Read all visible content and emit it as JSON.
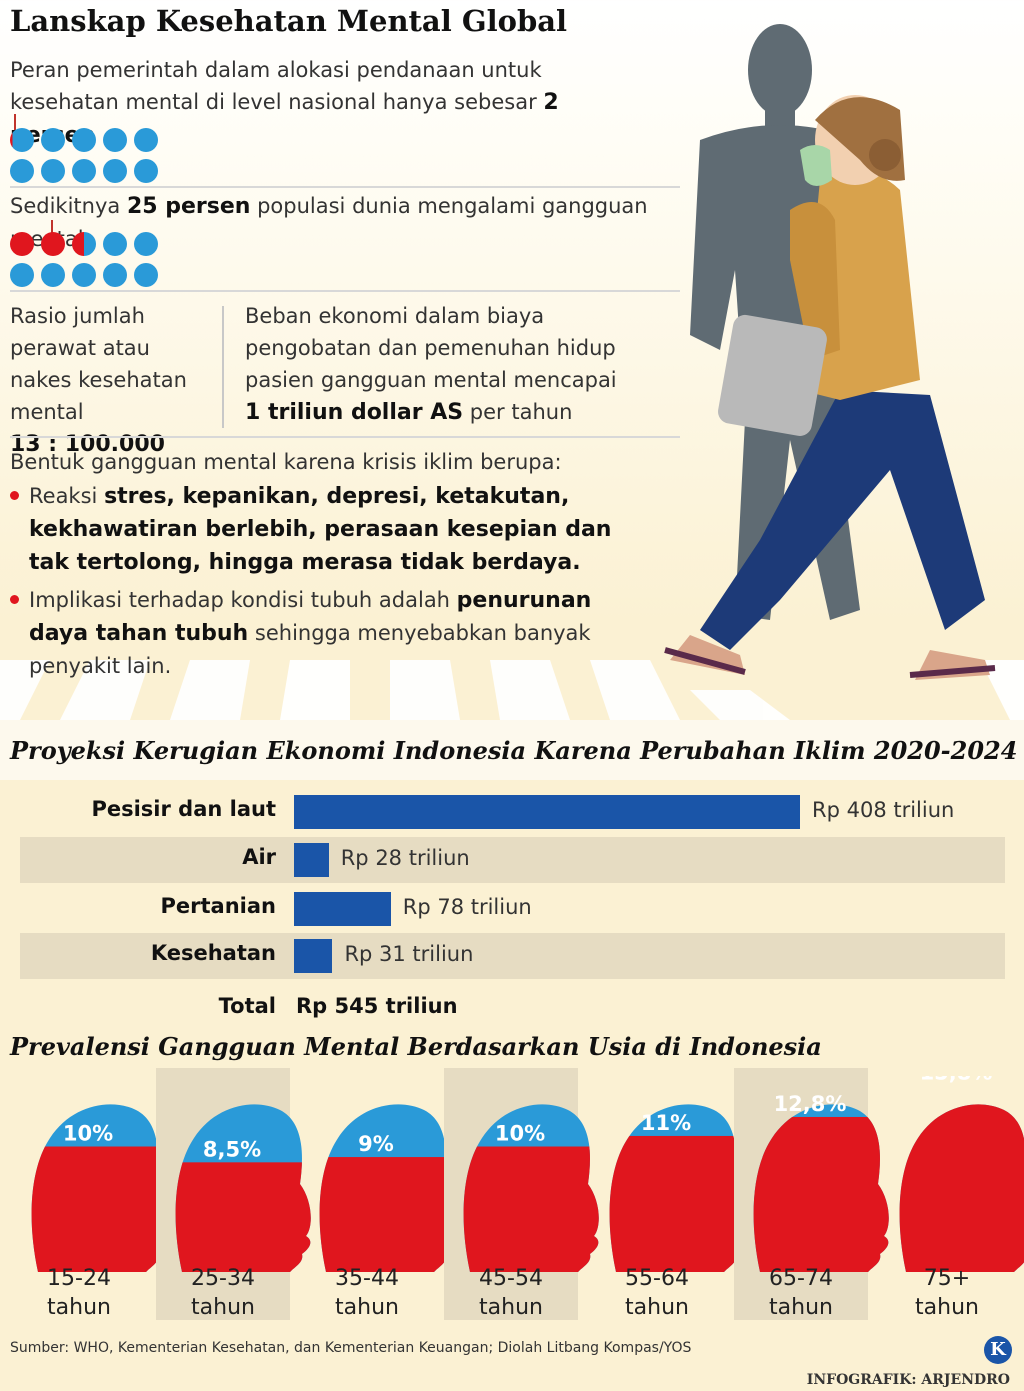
{
  "title": "Lanskap Kesehatan Mental Global",
  "stat1": {
    "text_before": "Peran pemerintah dalam alokasi pendanaan untuk kesehatan mental di level nasional hanya sebesar ",
    "highlight": "2 persen",
    "percent": 2
  },
  "stat2": {
    "text_before": "Sedikitnya ",
    "highlight": "25 persen",
    "text_after": " populasi dunia mengalami gangguan mental",
    "percent": 25
  },
  "stat3": {
    "label": "Rasio jumlah perawat atau nakes kesehatan mental",
    "value": "13 : 100.000"
  },
  "stat4": {
    "label": "Beban ekonomi dalam biaya pengobatan dan pemenuhan hidup pasien gangguan mental mencapai ",
    "highlight": "1 triliun dollar AS",
    "text_after": " per tahun"
  },
  "climate": {
    "intro": "Bentuk gangguan mental karena krisis iklim berupa:",
    "bullet1": {
      "plain": "Reaksi ",
      "bold": "stres, kepanikan, depresi, ketakutan, kekhawatiran berlebih, perasaan kesepian dan tak tertolong, hingga merasa tidak berdaya."
    },
    "bullet2": {
      "plain": "Implikasi terhadap kondisi tubuh adalah ",
      "bold": "penurunan daya tahan tubuh",
      "after": " sehingga menyebabkan banyak penyakit lain."
    }
  },
  "colors": {
    "blue": "#2a9ad8",
    "red": "#e0161e",
    "bar": "#1a55a8"
  },
  "chart_data": [
    {
      "type": "bar",
      "title": "Proyeksi Kerugian Ekonomi Indonesia Karena Perubahan Iklim 2020-2024",
      "categories": [
        "Pesisir dan laut",
        "Air",
        "Pertanian",
        "Kesehatan"
      ],
      "values": [
        408,
        28,
        78,
        31
      ],
      "value_labels": [
        "Rp 408 triliun",
        "Rp 28 triliun",
        "Rp 78 triliun",
        "Rp 31 triliun"
      ],
      "total_label": "Total",
      "total_value": "Rp 545 triliun"
    },
    {
      "type": "bar",
      "title": "Prevalensi Gangguan Mental Berdasarkan Usia di Indonesia",
      "categories": [
        "15-24 tahun",
        "25-34 tahun",
        "35-44 tahun",
        "45-54 tahun",
        "55-64 tahun",
        "65-74 tahun",
        "75+ tahun"
      ],
      "age_top": [
        "15-24",
        "25-34",
        "35-44",
        "45-54",
        "55-64",
        "65-74",
        "75+"
      ],
      "age_unit": "tahun",
      "values": [
        10,
        8.5,
        9,
        10,
        11,
        12.8,
        15.8
      ],
      "value_labels": [
        "10%",
        "8,5%",
        "9%",
        "10%",
        "11%",
        "12,8%",
        "15,8%"
      ]
    }
  ],
  "source": "Sumber: WHO, Kementerian Kesehatan, dan Kementerian Keuangan; Diolah Litbang Kompas/YOS",
  "credit": "INFOGRAFIK: ARJENDRO",
  "logo_letter": "K"
}
